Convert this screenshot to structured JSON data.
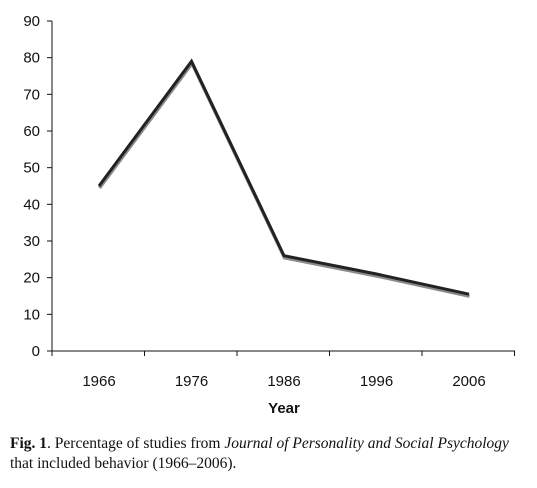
{
  "chart_data": {
    "type": "line",
    "title": "",
    "xlabel": "Year",
    "ylabel": "",
    "categories": [
      "1966",
      "1976",
      "1986",
      "1996",
      "2006"
    ],
    "series": [
      {
        "values": [
          45,
          79,
          26,
          21,
          15.5
        ]
      }
    ],
    "ylim": [
      0,
      90
    ],
    "yticks": [
      0,
      10,
      20,
      30,
      40,
      50,
      60,
      70,
      80,
      90
    ],
    "grid": false,
    "legend": "none",
    "line_color": "#222222",
    "shadow_color": "#8a8a8a"
  },
  "caption": {
    "label": "Fig. 1",
    "text_before": ". Percentage of studies from ",
    "journal": "Journal of Personality and Social Psychology",
    "text_after": " that included behavior (1966–2006)."
  }
}
